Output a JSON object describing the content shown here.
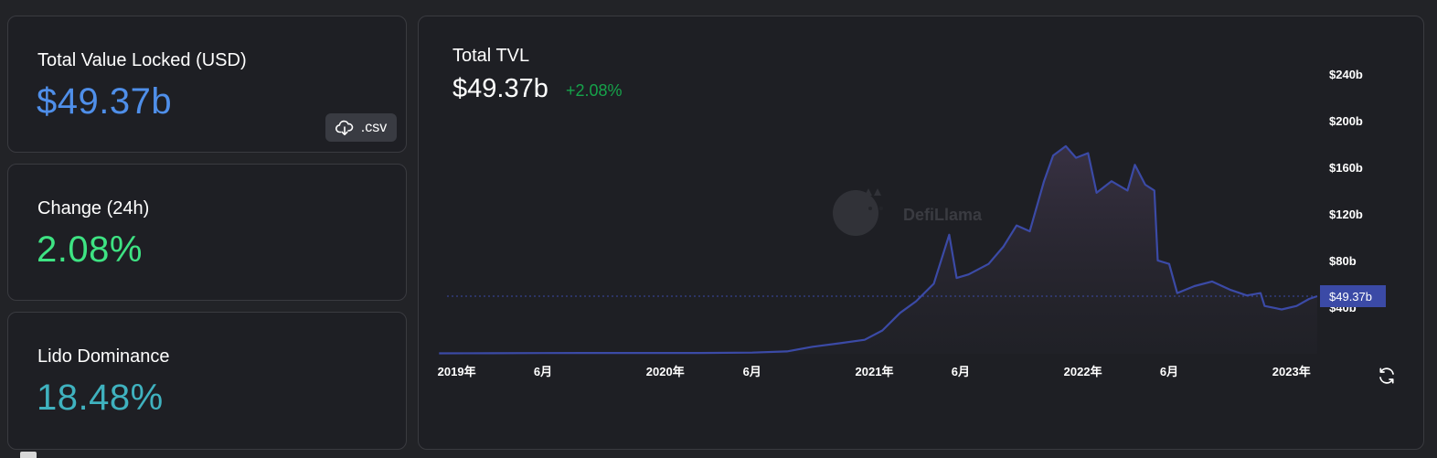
{
  "cards": {
    "tvl": {
      "label": "Total Value Locked (USD)",
      "value": "$49.37b",
      "csv_label": ".csv"
    },
    "change": {
      "label": "Change (24h)",
      "value": "2.08%"
    },
    "dominance": {
      "label": "Lido Dominance",
      "value": "18.48%"
    }
  },
  "chart_header": {
    "title": "Total TVL",
    "value": "$49.37b",
    "change": "+2.08%"
  },
  "watermark": "DefiLlama",
  "colors": {
    "tvl_value": "#4f8fea",
    "change_value": "#3ee383",
    "dominance_value": "#3fb2bf",
    "change_pct": "#16a34a",
    "line": "#3b4aa6",
    "current_tag": "#3b4aa6"
  },
  "icons": {
    "csv": "cloud-download-icon",
    "refresh": "refresh-icon",
    "watermark": "llama-logo-icon"
  },
  "chart_data": {
    "type": "area",
    "title": "Total TVL",
    "ylim": [
      0,
      250
    ],
    "y_unit": "b",
    "y_ticks": [
      "$40b",
      "$80b",
      "$120b",
      "$160b",
      "$200b",
      "$240b"
    ],
    "y_tick_values": [
      40,
      80,
      120,
      160,
      200,
      240
    ],
    "x_ticks": [
      "2019年",
      "6月",
      "2020年",
      "6月",
      "2021年",
      "6月",
      "2022年",
      "6月",
      "2023年"
    ],
    "x_tick_dates": [
      "2019-01-01",
      "2019-06-01",
      "2020-01-01",
      "2020-06-01",
      "2021-01-01",
      "2021-06-01",
      "2022-01-01",
      "2022-06-01",
      "2023-01-01"
    ],
    "current_value_label": "$49.37b",
    "current_value": 49.37,
    "series": [
      {
        "x": [
          "2018-12-01",
          "2019-03-01",
          "2019-06-01",
          "2019-09-01",
          "2019-12-01",
          "2020-03-01",
          "2020-06-01",
          "2020-08-01",
          "2020-09-15",
          "2020-11-01",
          "2020-12-15",
          "2021-01-15",
          "2021-02-15",
          "2021-03-15",
          "2021-04-15",
          "2021-05-12",
          "2021-05-25",
          "2021-06-15",
          "2021-07-20",
          "2021-08-15",
          "2021-09-07",
          "2021-09-30",
          "2021-10-25",
          "2021-11-10",
          "2021-12-02",
          "2021-12-20",
          "2022-01-10",
          "2022-01-25",
          "2022-02-20",
          "2022-03-20",
          "2022-04-02",
          "2022-04-20",
          "2022-05-06",
          "2022-05-12",
          "2022-06-01",
          "2022-06-15",
          "2022-07-15",
          "2022-08-15",
          "2022-09-15",
          "2022-10-15",
          "2022-11-08",
          "2022-11-15",
          "2022-12-15",
          "2023-01-10",
          "2023-02-01",
          "2023-02-15"
        ],
        "y": [
          0.4,
          0.5,
          0.6,
          0.7,
          0.7,
          0.7,
          1.0,
          2.0,
          6.0,
          9.0,
          12.0,
          20.0,
          35.0,
          45.0,
          60.0,
          102.0,
          65.0,
          68.0,
          77.0,
          92.0,
          110.0,
          105.0,
          148.0,
          170.0,
          178.0,
          168.0,
          172.0,
          138.0,
          148.0,
          140.0,
          162.0,
          145.0,
          140.0,
          80.0,
          77.0,
          52.0,
          58.0,
          62.0,
          55.0,
          50.0,
          52.0,
          41.0,
          38.0,
          41.0,
          47.0,
          49.37
        ]
      }
    ]
  }
}
